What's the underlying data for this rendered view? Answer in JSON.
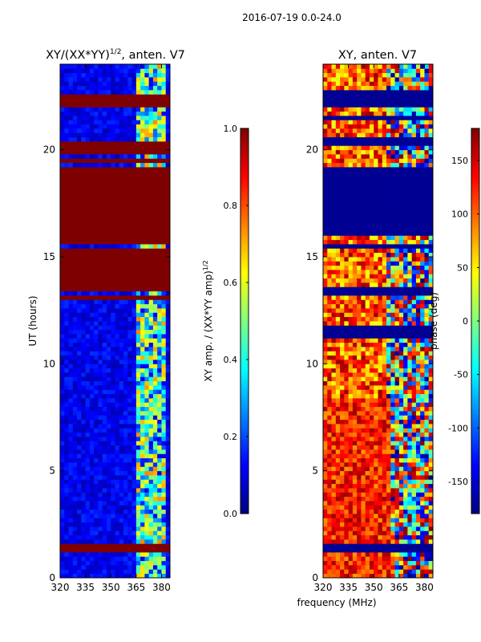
{
  "suptitle": "2016-07-19 0.0-24.0",
  "xlabel_shared": "frequency (MHz)",
  "colors": {
    "jet": [
      "#00007f",
      "#0000ff",
      "#007fff",
      "#00ffff",
      "#7fff7f",
      "#ffff00",
      "#ff7f00",
      "#ff0000",
      "#7f0000"
    ]
  },
  "chart_data": [
    {
      "type": "heatmap",
      "title": "XY/(XX*YY)",
      "title_exp": "1/2",
      "title_suffix": ", anten. V7",
      "xlabel": "",
      "ylabel": "UT (hours)",
      "xlim": [
        320,
        385
      ],
      "ylim": [
        0,
        24
      ],
      "xticks": [
        "320",
        "335",
        "350",
        "365",
        "380"
      ],
      "yticks": [
        "0",
        "5",
        "10",
        "15",
        "20"
      ],
      "value_range": [
        0,
        1
      ],
      "saturated_bands_hours": [
        [
          1.2,
          1.5
        ],
        [
          12.9,
          13.2
        ],
        [
          13.4,
          15.3
        ],
        [
          15.6,
          16.1
        ],
        [
          16.2,
          19.2
        ],
        [
          19.4,
          19.6
        ],
        [
          19.9,
          20.4
        ],
        [
          22.0,
          22.6
        ]
      ],
      "active_band_mhz": [
        364,
        382
      ],
      "colorbar": {
        "label": "XY amp. / (XX*YY amp)",
        "label_exp": "1/2",
        "range": [
          0,
          1
        ],
        "ticks": [
          "0.0",
          "0.2",
          "0.4",
          "0.6",
          "0.8",
          "1.0"
        ]
      }
    },
    {
      "type": "heatmap",
      "title": "XY, anten. V7",
      "xlabel": "frequency (MHz)",
      "ylabel": "",
      "xlim": [
        320,
        385
      ],
      "ylim": [
        0,
        24
      ],
      "xticks": [
        "320",
        "335",
        "350",
        "365",
        "380"
      ],
      "yticks": [
        "0",
        "5",
        "10",
        "15",
        "20"
      ],
      "value_range": [
        -180,
        180
      ],
      "flagged_bands_hours": [
        [
          1.2,
          1.6
        ],
        [
          11.3,
          11.7
        ],
        [
          13.2,
          13.5
        ],
        [
          15.3,
          15.6
        ],
        [
          16.0,
          19.2
        ],
        [
          20.3,
          20.5
        ],
        [
          21.4,
          21.6
        ],
        [
          22.0,
          22.7
        ]
      ],
      "colorbar": {
        "label": "phase (deg)",
        "range": [
          -180,
          180
        ],
        "ticks": [
          "-150",
          "-100",
          "-50",
          "0",
          "50",
          "100",
          "150"
        ]
      }
    }
  ]
}
